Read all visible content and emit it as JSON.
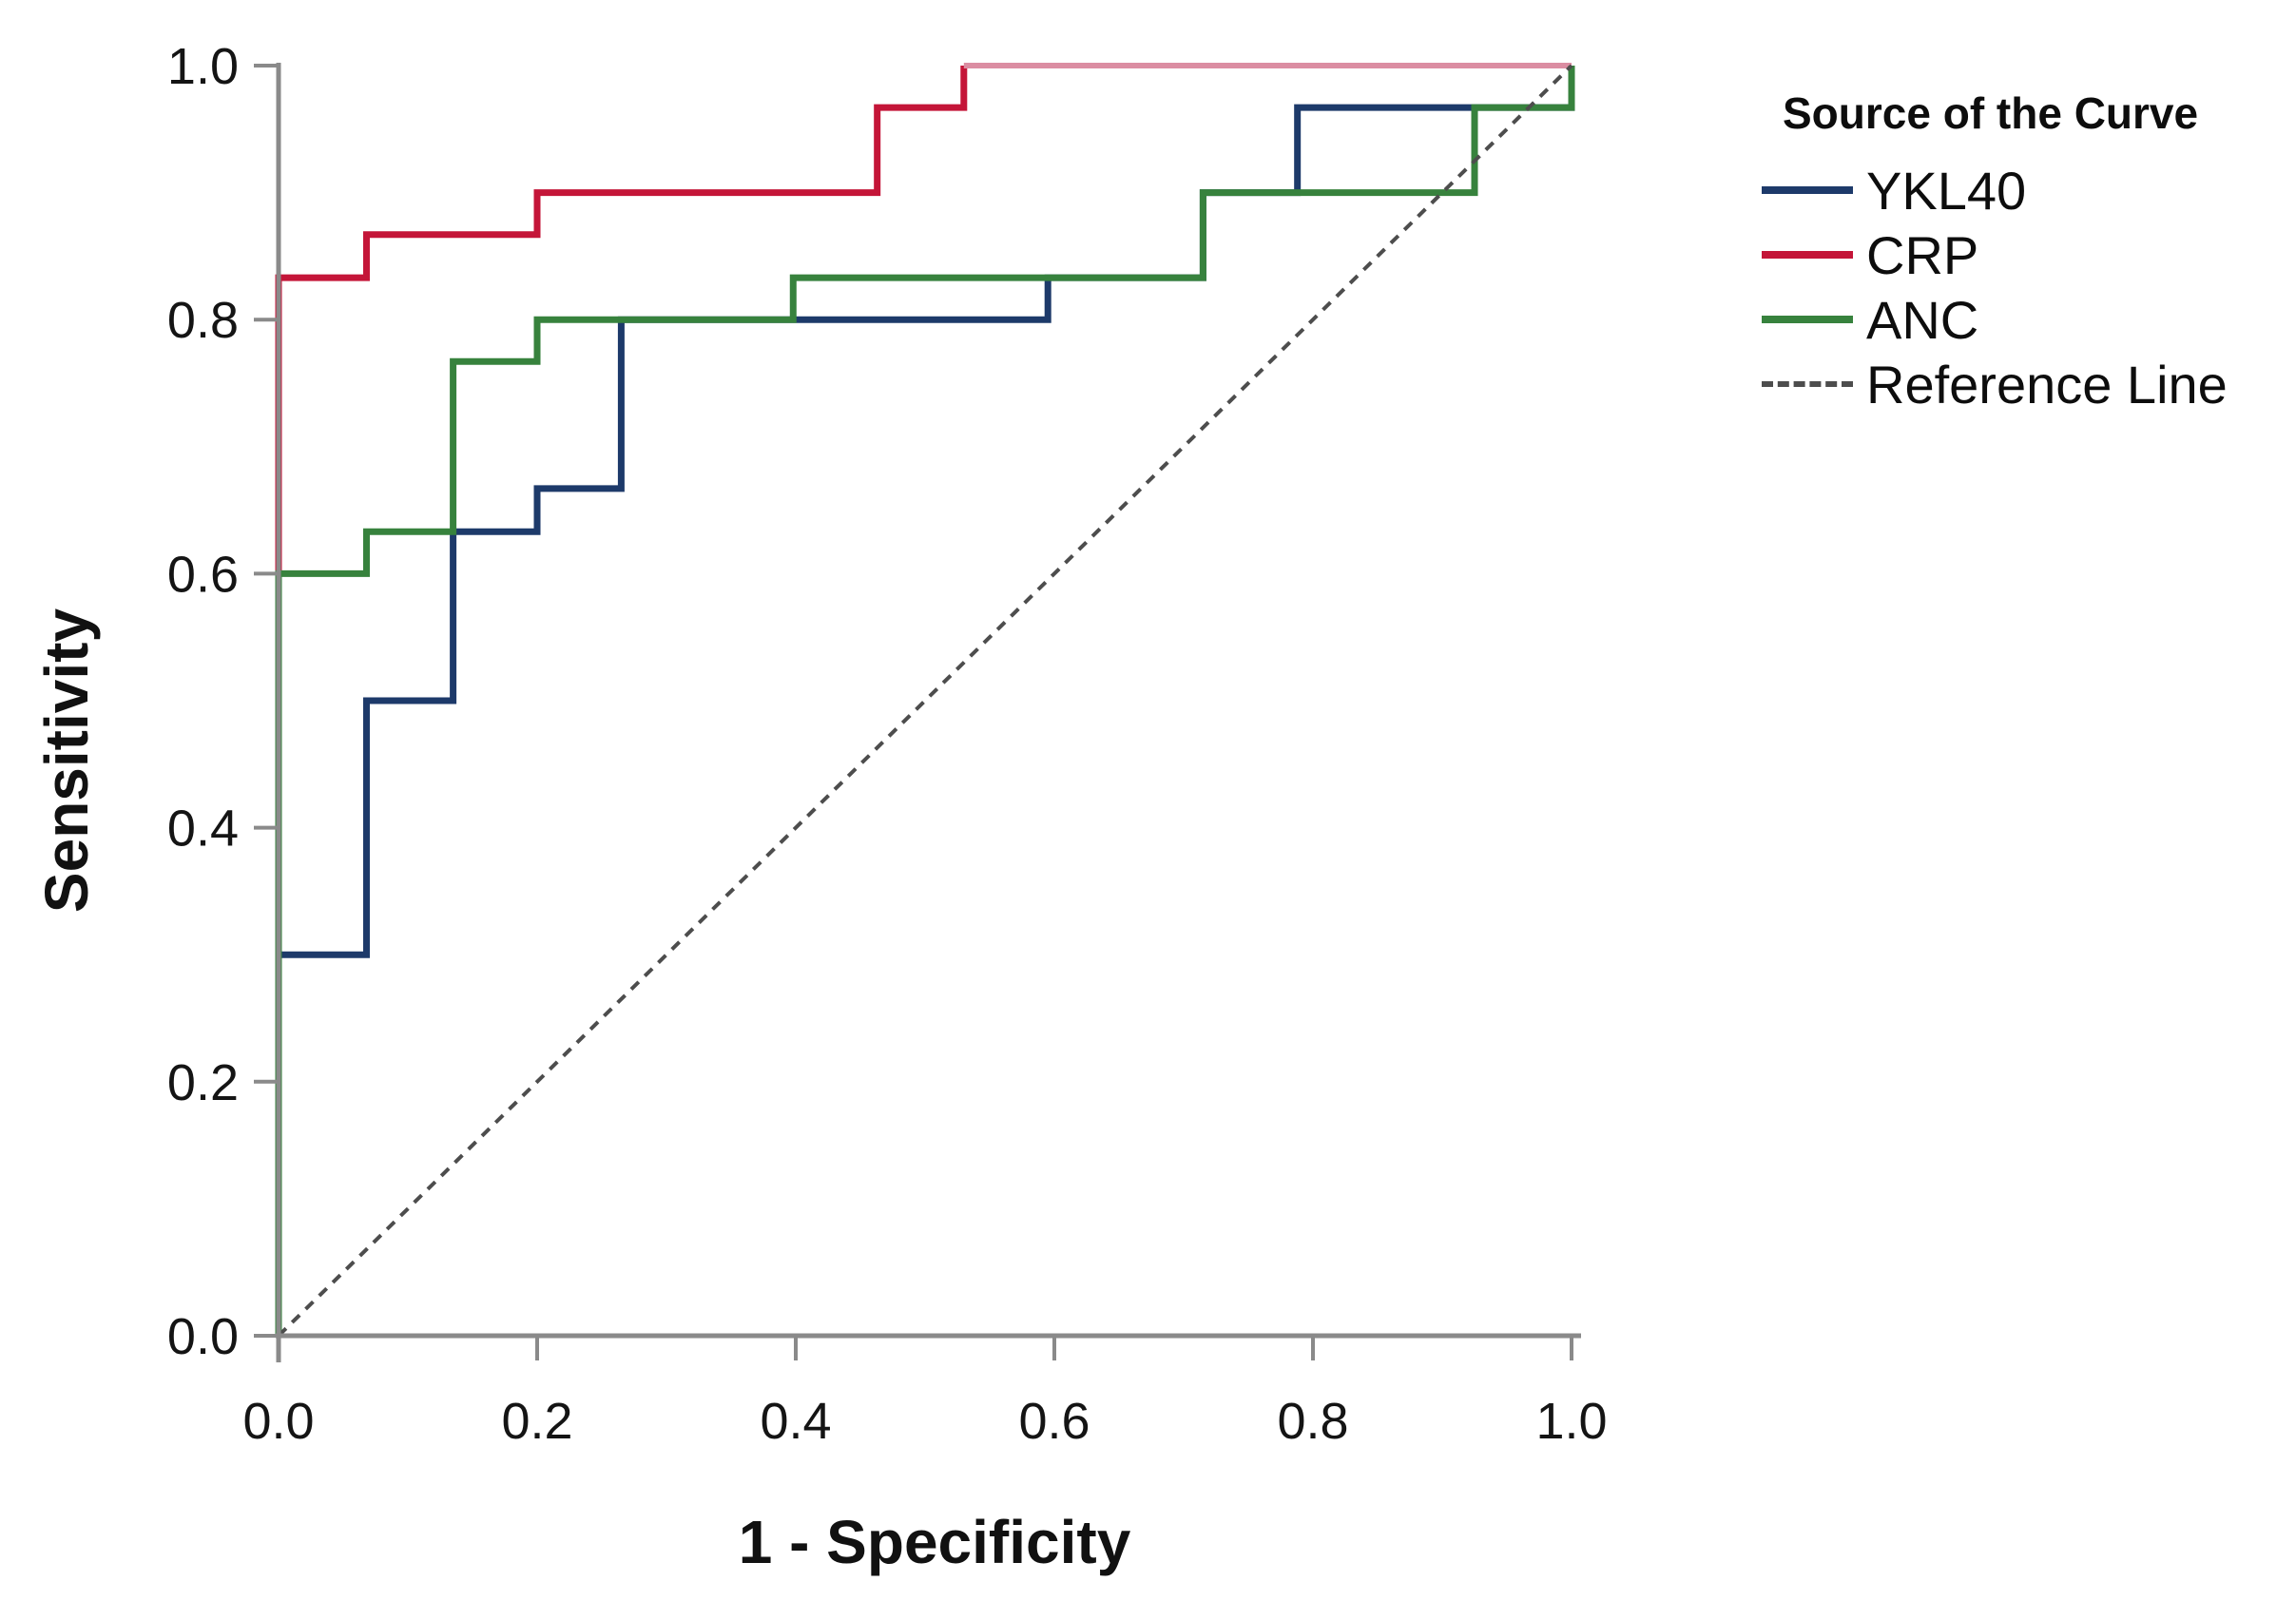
{
  "chart_data": {
    "type": "line",
    "subtype": "roc-step-curves",
    "title": "",
    "xlabel": "1 - Specificity",
    "ylabel": "Sensitivity",
    "xlim": [
      0,
      1
    ],
    "ylim": [
      0,
      1
    ],
    "grid": false,
    "background": "#ffffff",
    "axes": {
      "x": {
        "tick_labels": [
          "0.0",
          "0.2",
          "0.4",
          "0.6",
          "0.8",
          "1.0"
        ],
        "tick_values": [
          0,
          0.2,
          0.4,
          0.6,
          0.8,
          1.0
        ]
      },
      "y": {
        "tick_labels": [
          "0.0",
          "0.2",
          "0.4",
          "0.6",
          "0.8",
          "1.0"
        ],
        "tick_values": [
          0,
          0.2,
          0.4,
          0.6,
          0.8,
          1.0
        ]
      }
    },
    "legend": {
      "title": "Source of the Curve",
      "position": "outside-top-right",
      "entries": [
        {
          "label": "YKL40",
          "color": "#1d3a6a",
          "style": "solid"
        },
        {
          "label": "CRP",
          "color": "#c41538",
          "style": "solid"
        },
        {
          "label": "ANC",
          "color": "#37823d",
          "style": "solid"
        },
        {
          "label": "Reference Line",
          "color": "#4d4d4d",
          "style": "dashed"
        }
      ]
    },
    "series": [
      {
        "name": "CRP",
        "color": "#c41538",
        "width": 7,
        "points": [
          [
            0,
            0
          ],
          [
            0,
            0.833
          ],
          [
            0.068,
            0.833
          ],
          [
            0.068,
            0.867
          ],
          [
            0.2,
            0.867
          ],
          [
            0.2,
            0.9
          ],
          [
            0.463,
            0.9
          ],
          [
            0.463,
            0.967
          ],
          [
            0.53,
            0.967
          ],
          [
            0.53,
            1
          ]
        ],
        "extra_segments": [
          {
            "name": "CRP-at-sensitivity-1",
            "color": "#db8da2",
            "width": 6,
            "points": [
              [
                0.53,
                1
              ],
              [
                1,
                1
              ]
            ]
          }
        ]
      },
      {
        "name": "YKL40",
        "color": "#1d3a6a",
        "width": 7,
        "points": [
          [
            0,
            0
          ],
          [
            0,
            0.3
          ],
          [
            0.068,
            0.3
          ],
          [
            0.068,
            0.5
          ],
          [
            0.135,
            0.5
          ],
          [
            0.135,
            0.633
          ],
          [
            0.2,
            0.633
          ],
          [
            0.2,
            0.667
          ],
          [
            0.265,
            0.667
          ],
          [
            0.265,
            0.8
          ],
          [
            0.595,
            0.8
          ],
          [
            0.595,
            0.833
          ],
          [
            0.715,
            0.833
          ],
          [
            0.715,
            0.9
          ],
          [
            0.788,
            0.9
          ],
          [
            0.788,
            0.967
          ],
          [
            1,
            0.967
          ],
          [
            1,
            1
          ]
        ]
      },
      {
        "name": "ANC",
        "color": "#37823d",
        "width": 7,
        "points": [
          [
            0,
            0
          ],
          [
            0,
            0.6
          ],
          [
            0.068,
            0.6
          ],
          [
            0.068,
            0.633
          ],
          [
            0.135,
            0.633
          ],
          [
            0.135,
            0.767
          ],
          [
            0.2,
            0.767
          ],
          [
            0.2,
            0.8
          ],
          [
            0.398,
            0.8
          ],
          [
            0.398,
            0.833
          ],
          [
            0.715,
            0.833
          ],
          [
            0.715,
            0.9
          ],
          [
            0.925,
            0.9
          ],
          [
            0.925,
            0.967
          ],
          [
            1,
            0.967
          ],
          [
            1,
            1
          ]
        ]
      },
      {
        "name": "Reference Line",
        "color": "#4d4d4d",
        "width": 4,
        "dash": [
          11,
          9
        ],
        "points": [
          [
            0,
            0
          ],
          [
            1,
            1
          ]
        ]
      }
    ],
    "style_colors": {
      "axis": "#8a8a8a",
      "tick_text": "#141414"
    }
  }
}
